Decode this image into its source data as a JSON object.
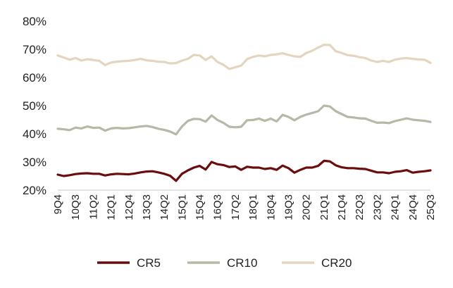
{
  "chart_data": {
    "type": "line",
    "x": [
      "9Q4",
      "10Q1",
      "10Q2",
      "10Q3",
      "10Q4",
      "11Q1",
      "11Q2",
      "11Q3",
      "11Q4",
      "12Q1",
      "12Q2",
      "12Q3",
      "12Q4",
      "13Q1",
      "13Q2",
      "13Q3",
      "13Q4",
      "14Q1",
      "14Q2",
      "14Q3",
      "14Q4",
      "15Q1",
      "15Q2",
      "15Q3",
      "15Q4",
      "16Q1",
      "16Q2",
      "16Q3",
      "16Q4",
      "17Q1",
      "17Q2",
      "17Q3",
      "17Q4",
      "18Q1",
      "18Q2",
      "18Q3",
      "18Q4",
      "19Q1",
      "19Q2",
      "19Q3",
      "19Q4",
      "20Q1",
      "20Q2",
      "20Q3",
      "20Q4",
      "21Q1",
      "21Q2",
      "21Q3",
      "21Q4",
      "22Q1",
      "22Q2",
      "22Q3",
      "22Q4",
      "23Q1",
      "23Q2",
      "23Q3",
      "23Q4",
      "24Q1",
      "24Q2",
      "24Q3",
      "24Q4",
      "25Q1",
      "25Q2",
      "25Q3"
    ],
    "x_tick_labels": [
      "9Q4",
      "10Q3",
      "11Q2",
      "12Q1",
      "12Q4",
      "13Q3",
      "14Q2",
      "15Q1",
      "15Q4",
      "16Q3",
      "17Q2",
      "18Q1",
      "18Q4",
      "19Q3",
      "20Q2",
      "21Q1",
      "21Q4",
      "22Q3",
      "23Q2",
      "24Q1",
      "24Q4",
      "25Q3"
    ],
    "y_tick_labels": [
      "20%",
      "30%",
      "40%",
      "50%",
      "60%",
      "70%",
      "80%"
    ],
    "ylim": [
      20,
      80
    ],
    "ytick_step": 10,
    "grid": false,
    "legend_position": "bottom",
    "series": [
      {
        "name": "CR5",
        "color": "#6b0d0d",
        "values": [
          25.5,
          25.0,
          25.3,
          25.7,
          25.9,
          26.0,
          25.8,
          25.8,
          25.2,
          25.6,
          25.8,
          25.7,
          25.6,
          25.9,
          26.3,
          26.6,
          26.7,
          26.3,
          25.8,
          25.1,
          23.3,
          25.8,
          27.0,
          28.0,
          28.6,
          27.3,
          30.0,
          29.2,
          28.9,
          28.2,
          28.4,
          27.2,
          28.3,
          28.0,
          28.0,
          27.5,
          27.8,
          27.2,
          28.7,
          27.8,
          26.2,
          27.2,
          28.0,
          28.0,
          28.6,
          30.4,
          30.2,
          28.8,
          28.1,
          27.8,
          27.8,
          27.6,
          27.5,
          26.9,
          26.3,
          26.3,
          26.0,
          26.5,
          26.7,
          27.1,
          26.2,
          26.5,
          26.7,
          27.0
        ]
      },
      {
        "name": "CR10",
        "color": "#b7b8a8",
        "values": [
          41.8,
          41.6,
          41.3,
          42.2,
          41.9,
          42.6,
          42.1,
          42.2,
          41.1,
          41.9,
          42.1,
          41.9,
          42.0,
          42.3,
          42.6,
          42.8,
          42.4,
          41.8,
          41.4,
          40.8,
          39.8,
          42.6,
          44.6,
          45.3,
          45.2,
          44.3,
          46.5,
          44.9,
          43.9,
          42.5,
          42.3,
          42.5,
          44.8,
          44.9,
          45.4,
          44.6,
          45.4,
          44.4,
          46.7,
          46.0,
          44.8,
          46.0,
          46.8,
          47.4,
          48.0,
          50.0,
          49.7,
          48.0,
          47.0,
          46.0,
          45.8,
          45.5,
          45.4,
          44.6,
          43.9,
          44.0,
          43.8,
          44.5,
          45.0,
          45.5,
          45.0,
          44.8,
          44.6,
          44.2
        ]
      },
      {
        "name": "CR20",
        "color": "#e3d5c0",
        "values": [
          67.8,
          67.1,
          66.3,
          66.9,
          66.0,
          66.5,
          66.2,
          65.9,
          64.4,
          65.3,
          65.6,
          65.8,
          65.9,
          66.2,
          66.6,
          66.1,
          65.9,
          65.6,
          65.5,
          65.0,
          65.1,
          66.0,
          66.6,
          68.0,
          67.8,
          66.2,
          67.5,
          65.5,
          64.5,
          63.0,
          63.6,
          64.2,
          66.5,
          67.3,
          67.8,
          67.5,
          68.0,
          68.2,
          68.6,
          68.0,
          67.5,
          67.3,
          68.7,
          69.5,
          70.6,
          71.6,
          71.5,
          69.3,
          68.7,
          67.9,
          67.7,
          67.2,
          66.9,
          66.0,
          65.5,
          65.9,
          65.5,
          66.3,
          66.7,
          66.9,
          66.6,
          66.4,
          66.3,
          65.2
        ]
      }
    ]
  }
}
